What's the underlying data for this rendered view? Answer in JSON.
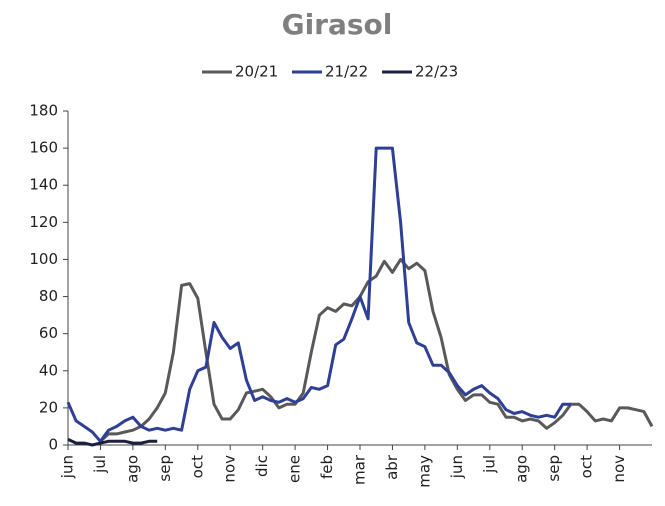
{
  "chart_data": {
    "type": "line",
    "title": "Girasol",
    "categories": [
      "jun",
      null,
      null,
      null,
      "jul",
      null,
      null,
      null,
      "ago",
      null,
      null,
      null,
      "sep",
      null,
      null,
      null,
      "oct",
      null,
      null,
      null,
      "nov",
      null,
      null,
      null,
      "dic",
      null,
      null,
      null,
      "ene",
      null,
      null,
      null,
      "feb",
      null,
      null,
      null,
      "mar",
      null,
      null,
      null,
      "abr",
      null,
      null,
      null,
      "may",
      null,
      null,
      null,
      "jun",
      null,
      null,
      null,
      "jul",
      null,
      null,
      null,
      "ago",
      null,
      null,
      null,
      "sep",
      null,
      null,
      null,
      "oct",
      null,
      null,
      null,
      "nov",
      null,
      null,
      null,
      null
    ],
    "series": [
      {
        "name": "20/21",
        "color": "#595959",
        "values": [
          null,
          null,
          null,
          null,
          2,
          6,
          6,
          7,
          8,
          10,
          14,
          20,
          28,
          50,
          86,
          87,
          79,
          50,
          22,
          14,
          14,
          19,
          28,
          29,
          30,
          26,
          20,
          22,
          22,
          28,
          50,
          70,
          74,
          72,
          76,
          75,
          80,
          88,
          91,
          99,
          93,
          100,
          95,
          98,
          94,
          72,
          58,
          38,
          30,
          24,
          27,
          27,
          23,
          22,
          15,
          15,
          13,
          14,
          13,
          9,
          12,
          16,
          22,
          22,
          18,
          13,
          14,
          13,
          20,
          20,
          19,
          18,
          10
        ]
      },
      {
        "name": "21/22",
        "color": "#2e3f95",
        "values": [
          23,
          13,
          10,
          7,
          2,
          8,
          10,
          13,
          15,
          10,
          8,
          9,
          8,
          9,
          8,
          30,
          40,
          42,
          66,
          58,
          52,
          55,
          35,
          24,
          26,
          24,
          23,
          25,
          23,
          25,
          31,
          30,
          32,
          54,
          57,
          68,
          80,
          68,
          160,
          160,
          160,
          120,
          66,
          55,
          53,
          43,
          43,
          39,
          32,
          27,
          30,
          32,
          28,
          25,
          19,
          17,
          18,
          16,
          15,
          16,
          15,
          22,
          22,
          null,
          null,
          null,
          null,
          null,
          null,
          null,
          null,
          null,
          null
        ]
      },
      {
        "name": "22/23",
        "color": "#1c1f3f",
        "values": [
          3,
          1,
          1,
          0,
          1,
          2,
          2,
          2,
          1,
          1,
          2,
          2,
          null,
          null,
          null,
          null,
          null,
          null,
          null,
          null,
          null,
          null,
          null,
          null,
          null,
          null,
          null,
          null,
          null,
          null,
          null,
          null,
          null,
          null,
          null,
          null,
          null,
          null,
          null,
          null,
          null,
          null,
          null,
          null,
          null,
          null,
          null,
          null,
          null,
          null,
          null,
          null,
          null,
          null,
          null,
          null,
          null,
          null,
          null,
          null,
          null,
          null,
          null,
          null,
          null,
          null,
          null,
          null,
          null,
          null,
          null,
          null,
          null
        ]
      }
    ],
    "ylim": [
      0,
      180
    ],
    "yticks": [
      0,
      20,
      40,
      60,
      80,
      100,
      120,
      140,
      160,
      180
    ]
  }
}
